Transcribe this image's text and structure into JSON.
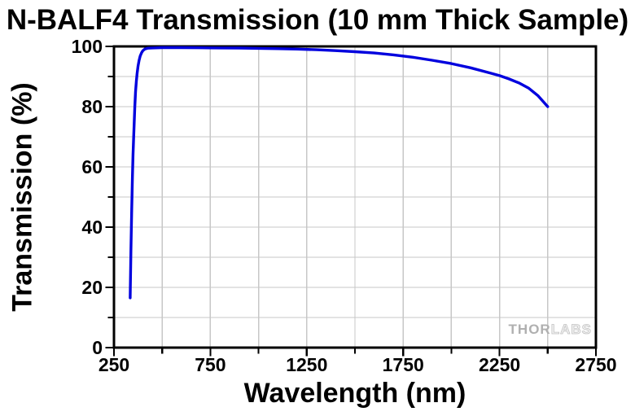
{
  "page": {
    "background": "#ffffff"
  },
  "chart_data": {
    "type": "line",
    "title": "N-BALF4 Transmission (10 mm Thick Sample)",
    "xlabel": "Wavelength (nm)",
    "ylabel": "Transmission (%)",
    "xlim": [
      250,
      2750
    ],
    "ylim": [
      0,
      100
    ],
    "x_major_ticks": [
      250,
      750,
      1250,
      1750,
      2250,
      2750
    ],
    "x_minor_ticks": [
      500,
      1000,
      1500,
      2000,
      2500
    ],
    "y_major_ticks": [
      0,
      20,
      40,
      60,
      80,
      100
    ],
    "y_minor_ticks": [
      10,
      30,
      50,
      70,
      90
    ],
    "grid": {
      "major": true,
      "minor": true
    },
    "legend": "none",
    "series": [
      {
        "name": "N-BALF4 transmission (10 mm thick sample)",
        "color": "#0000de",
        "points": [
          [
            334,
            16.5
          ],
          [
            335,
            20
          ],
          [
            336,
            25
          ],
          [
            338,
            32
          ],
          [
            340,
            39
          ],
          [
            342,
            46
          ],
          [
            344,
            52
          ],
          [
            346,
            57
          ],
          [
            349,
            64
          ],
          [
            352,
            70
          ],
          [
            355,
            75
          ],
          [
            358,
            80
          ],
          [
            362,
            85
          ],
          [
            366,
            88.5
          ],
          [
            370,
            91
          ],
          [
            375,
            93.5
          ],
          [
            380,
            95.3
          ],
          [
            386,
            96.8
          ],
          [
            393,
            97.9
          ],
          [
            400,
            98.6
          ],
          [
            410,
            99.1
          ],
          [
            425,
            99.4
          ],
          [
            450,
            99.5
          ],
          [
            500,
            99.6
          ],
          [
            600,
            99.6
          ],
          [
            700,
            99.55
          ],
          [
            800,
            99.5
          ],
          [
            900,
            99.45
          ],
          [
            1000,
            99.35
          ],
          [
            1100,
            99.25
          ],
          [
            1200,
            99.1
          ],
          [
            1300,
            98.9
          ],
          [
            1400,
            98.6
          ],
          [
            1500,
            98.25
          ],
          [
            1600,
            97.8
          ],
          [
            1700,
            97.2
          ],
          [
            1800,
            96.4
          ],
          [
            1900,
            95.4
          ],
          [
            2000,
            94.3
          ],
          [
            2100,
            92.9
          ],
          [
            2200,
            91.2
          ],
          [
            2250,
            90.3
          ],
          [
            2300,
            89.2
          ],
          [
            2350,
            87.9
          ],
          [
            2400,
            86.2
          ],
          [
            2450,
            83.6
          ],
          [
            2500,
            80.0
          ]
        ]
      }
    ],
    "watermark": {
      "text_primary": "THOR",
      "text_secondary": "LABS"
    },
    "colors": {
      "curve": "#0000de",
      "grid": "#c7c7c7",
      "axis": "#000000",
      "text": "#000000",
      "watermark_primary": "#b0b0b0",
      "watermark_secondary": "#f2f2f2",
      "watermark_outline": "#c2c2c2"
    }
  }
}
